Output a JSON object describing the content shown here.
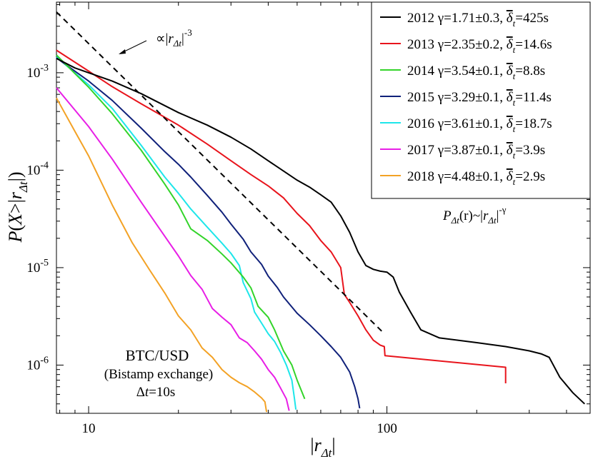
{
  "chart_data": {
    "type": "line",
    "title": "",
    "xlabel": "|rΔt|",
    "ylabel": "P(X>|rΔt|)",
    "x_scale": "log",
    "y_scale": "log",
    "xlim": [
      7.8,
      480
    ],
    "ylim": [
      3.2e-07,
      0.0053
    ],
    "x_tick_labels": [
      "10",
      "100"
    ],
    "y_tick_labels": [
      "10-6",
      "10-5",
      "10-4",
      "10-3"
    ],
    "series": [
      {
        "name": "2012",
        "label": "2012 γ=1.71±0.3, ",
        "delta_value": "=425s",
        "color": "#000000",
        "x": [
          7.8,
          9,
          10,
          12,
          15,
          20,
          25,
          30,
          35,
          40,
          45,
          50,
          55,
          60,
          65,
          70,
          75,
          80,
          85,
          90,
          95,
          100,
          105,
          110,
          120,
          130,
          150,
          200,
          250,
          300,
          330,
          350,
          380,
          420,
          460
        ],
        "y": [
          0.0014,
          0.00112,
          0.001,
          0.00082,
          0.00061,
          0.00039,
          0.00029,
          0.000218,
          0.000165,
          0.000125,
          9.8e-05,
          7.9e-05,
          6.7e-05,
          5.6e-05,
          4.7e-05,
          3.4e-05,
          2.3e-05,
          1.45e-05,
          1.05e-05,
          9.6e-06,
          9.2e-06,
          9e-06,
          8e-06,
          5.6e-06,
          3.5e-06,
          2.3e-06,
          1.9e-06,
          1.7e-06,
          1.55e-06,
          1.4e-06,
          1.3e-06,
          1.2e-06,
          7.5e-07,
          5.2e-07,
          4e-07
        ]
      },
      {
        "name": "2013",
        "label": "2013 γ=2.35±0.2, ",
        "delta_value": "=14.6s",
        "color": "#e8141c",
        "x": [
          7.8,
          10,
          12,
          15,
          20,
          25,
          30,
          35,
          40,
          45,
          50,
          55,
          60,
          65,
          70,
          72,
          75,
          80,
          85,
          90,
          95,
          98,
          98.5,
          250,
          250
        ],
        "y": [
          0.0017,
          0.00104,
          0.00072,
          0.00048,
          0.00029,
          0.000185,
          0.000125,
          9e-05,
          6.9e-05,
          5.2e-05,
          3.6e-05,
          2.7e-05,
          1.9e-05,
          1.45e-05,
          1e-05,
          5.3e-06,
          4.4e-06,
          3.2e-06,
          2.3e-06,
          1.8e-06,
          1.6e-06,
          1.55e-06,
          1.25e-06,
          9.5e-07,
          6.5e-07
        ]
      },
      {
        "name": "2014",
        "label": "2014 γ=3.54±0.1, ",
        "delta_value": "=8.8s",
        "color": "#33d42a",
        "x": [
          7.8,
          9,
          10,
          12,
          15,
          18,
          20,
          22,
          25,
          28,
          30,
          33,
          35,
          37,
          40,
          42,
          45,
          48,
          50,
          53
        ],
        "y": [
          0.00152,
          0.00098,
          0.00071,
          0.00038,
          0.00016,
          7.2e-05,
          4.4e-05,
          2.5e-05,
          1.9e-05,
          1.38e-05,
          1.12e-05,
          8e-06,
          6.2e-06,
          4e-06,
          3.1e-06,
          2.3e-06,
          1.4e-06,
          1e-06,
          7e-07,
          4.5e-07
        ]
      },
      {
        "name": "2015",
        "label": "2015 γ=3.29±0.1, ",
        "delta_value": "=11.4s",
        "color": "#10217a",
        "x": [
          7.8,
          10,
          12,
          15,
          18,
          20,
          22,
          25,
          28,
          30,
          33,
          35,
          38,
          40,
          43,
          45,
          50,
          55,
          60,
          65,
          70,
          75,
          78,
          80,
          81
        ],
        "y": [
          0.00142,
          0.00082,
          0.00052,
          0.00027,
          0.000155,
          0.000115,
          8.5e-05,
          5.5e-05,
          3.7e-05,
          2.8e-05,
          1.95e-05,
          1.45e-05,
          1.08e-05,
          8.2e-06,
          6.2e-06,
          5e-06,
          3.4e-06,
          2.6e-06,
          2e-06,
          1.55e-06,
          1.2e-06,
          8.5e-07,
          6e-07,
          4.5e-07,
          3.6e-07
        ]
      },
      {
        "name": "2016",
        "label": "2016 γ=3.61±0.1, ",
        "delta_value": "=18.7s",
        "color": "#1ee6ea",
        "x": [
          7.8,
          10,
          12,
          15,
          18,
          20,
          22,
          25,
          28,
          30,
          32,
          33,
          35,
          36,
          38,
          40,
          42,
          44,
          46,
          48,
          49,
          49.5
        ],
        "y": [
          0.00145,
          0.00075,
          0.00043,
          0.00018,
          8.5e-05,
          5.8e-05,
          4e-05,
          2.6e-05,
          1.78e-05,
          1.4e-05,
          1.05e-05,
          7e-06,
          4.8e-06,
          3.5e-06,
          2.7e-06,
          2.1e-06,
          1.75e-06,
          1.35e-06,
          1e-06,
          7e-07,
          4.5e-07,
          3.5e-07
        ]
      },
      {
        "name": "2017",
        "label": "2017 γ=3.87±0.1, ",
        "delta_value": "=3.9s",
        "color": "#e81ee6",
        "x": [
          7.8,
          10,
          12,
          15,
          18,
          20,
          22,
          24,
          26,
          28,
          30,
          32,
          34,
          36,
          38,
          40,
          42,
          44,
          46,
          47
        ],
        "y": [
          0.0007,
          0.00028,
          0.00013,
          4.7e-05,
          2.1e-05,
          1.32e-05,
          8.3e-06,
          6e-06,
          3.8e-06,
          3.1e-06,
          2.6e-06,
          1.9e-06,
          1.7e-06,
          1.4e-06,
          1.15e-06,
          9e-07,
          7.5e-07,
          5.8e-07,
          4.5e-07,
          3.4e-07
        ]
      },
      {
        "name": "2018",
        "label": "2018 γ=4.48±0.1, ",
        "delta_value": "=2.9s",
        "color": "#f3a225",
        "x": [
          7.8,
          9,
          10,
          12,
          14,
          16,
          18,
          20,
          22,
          24,
          26,
          28,
          30,
          32,
          34,
          36,
          38,
          39,
          39.5
        ],
        "y": [
          0.00055,
          0.00025,
          0.00014,
          4.4e-05,
          1.8e-05,
          9.5e-06,
          5.5e-06,
          3.2e-06,
          2.3e-06,
          1.5e-06,
          1.2e-06,
          9e-07,
          7.5e-07,
          6.6e-07,
          6e-07,
          5.3e-07,
          4.6e-07,
          4.2e-07,
          3.3e-07
        ]
      }
    ],
    "reference_line": {
      "name": "|r|^-3",
      "style": "dashed",
      "color": "#000000",
      "x": [
        7.8,
        98
      ],
      "y": [
        0.0042,
        2.1e-06
      ]
    },
    "delta_symbol": "δ",
    "delta_subscript": "t",
    "annotations": {
      "reference_prefix": "∝",
      "reference_r": "r",
      "reference_sub": "Δt",
      "reference_exp": "-3",
      "powerlaw_P": "P",
      "powerlaw_sub": "Δt",
      "powerlaw_mid": "(r)~",
      "powerlaw_r": "r",
      "powerlaw_sub2": "Δt",
      "powerlaw_exp": "-γ",
      "market": "BTC/USD",
      "exchange": "(Bistamp exchange)",
      "dt_symbol": "Δ",
      "dt_t": "t",
      "dt_value": "=10s"
    },
    "legend_position": "top-right"
  }
}
